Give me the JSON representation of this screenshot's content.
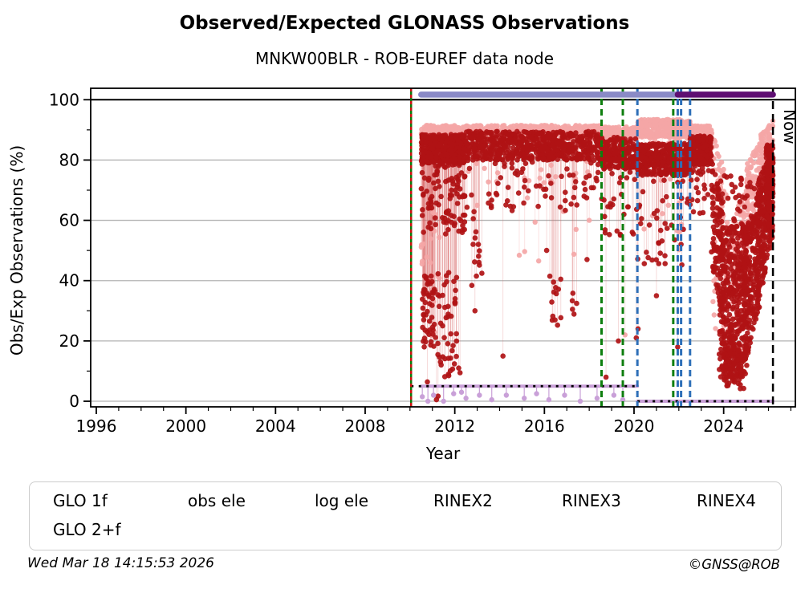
{
  "header": {
    "title": "Observed/Expected GLONASS Observations",
    "subtitle": "MNKW00BLR - ROB-EUREF data node"
  },
  "footer": {
    "timestamp": "Wed Mar 18 14:15:53 2026",
    "credit": "©GNSS@ROB"
  },
  "legend": {
    "items": [
      {
        "id": "glo-1f",
        "label": "GLO 1f",
        "color": "#F4A6A6",
        "marker": "dot"
      },
      {
        "id": "obs-ele",
        "label": "obs ele",
        "color": "#C9A0D8",
        "marker": "line-dot"
      },
      {
        "id": "log-ele",
        "label": "log ele",
        "color": "#000000",
        "marker": "dashed-dot"
      },
      {
        "id": "rinex2",
        "label": "RINEX2",
        "color": "#8A8AC6",
        "marker": "dot"
      },
      {
        "id": "rinex3",
        "label": "RINEX3",
        "color": "#5E0F72",
        "marker": "dot"
      },
      {
        "id": "rinex4",
        "label": "RINEX4",
        "color": "#220533",
        "marker": "dot"
      },
      {
        "id": "glo-2f",
        "label": "GLO 2+f",
        "color": "#B01215",
        "marker": "dot"
      }
    ]
  },
  "chart_data": {
    "type": "scatter",
    "title": "Observed/Expected GLONASS Observations",
    "subtitle": "MNKW00BLR - ROB-EUREF data node",
    "xlabel": "Year",
    "ylabel": "Obs/Exp Observations (%)",
    "xlim": [
      1995.75,
      2027.2
    ],
    "ylim": [
      -1.86,
      103.8
    ],
    "xticks": {
      "major": [
        1996,
        2000,
        2004,
        2008,
        2012,
        2016,
        2020,
        2024
      ],
      "minor_step": 1
    },
    "yticks": {
      "major": [
        0,
        20,
        40,
        60,
        80,
        100
      ],
      "minor_step": 10
    },
    "grid": {
      "color": "#b3b3b3",
      "line100_color": "#000000"
    },
    "now": {
      "x": 2026.2,
      "label": "Now"
    },
    "spans": [
      {
        "name": "RINEX2",
        "x": [
          2010.5,
          2022.05
        ],
        "y": 101.7,
        "color": "#8A8AC6"
      },
      {
        "name": "RINEX3",
        "x": [
          2021.95,
          2026.2
        ],
        "y": 101.7,
        "color": "#5E0F72"
      }
    ],
    "event_lines": [
      {
        "x": 2010.05,
        "color": "#0B7A0B",
        "dash": "none",
        "width": 2.5,
        "overlay": {
          "color": "#CC1111",
          "dash": "4 4",
          "width": 2.5
        }
      },
      {
        "x": 2018.55,
        "color": "#0E7E0E",
        "dash": "8 5",
        "width": 3
      },
      {
        "x": 2019.5,
        "color": "#0E7E0E",
        "dash": "8 5",
        "width": 3
      },
      {
        "x": 2020.15,
        "color": "#2E6FB8",
        "dash": "8 5",
        "width": 3
      },
      {
        "x": 2021.75,
        "color": "#0E7E0E",
        "dash": "8 5",
        "width": 3
      },
      {
        "x": 2021.95,
        "color": "#2E6FB8",
        "dash": "8 5",
        "width": 3
      },
      {
        "x": 2022.1,
        "color": "#2E6FB8",
        "dash": "8 5",
        "width": 3
      },
      {
        "x": 2022.5,
        "color": "#2E6FB8",
        "dash": "8 5",
        "width": 3
      },
      {
        "x": 2026.2,
        "color": "#000000",
        "dash": "10 6",
        "width": 2.5,
        "label": "Now"
      }
    ],
    "series": [
      {
        "name": "GLO 1f",
        "color": "#F4A6A6",
        "r": 3.2,
        "stem_from": 87,
        "stem_color": "rgba(244,166,166,0.35)",
        "bands": [
          {
            "x": [
              2010.5,
              2012.45
            ],
            "y": [
              86.5,
              91.5
            ],
            "n": 230
          },
          {
            "x": [
              2010.5,
              2011.4
            ],
            "y": [
              20,
              65
            ],
            "n": 20,
            "stems": true
          },
          {
            "x": [
              2012.45,
              2018.55
            ],
            "y": [
              87,
              91.5
            ],
            "n": 520
          },
          {
            "x": [
              2012.45,
              2018.55
            ],
            "y": [
              72,
              87
            ],
            "n": 35
          },
          {
            "x": [
              2014.5,
              2018.4
            ],
            "y": [
              45,
              72
            ],
            "n": 8,
            "stems": true
          },
          {
            "x": [
              2018.55,
              2020.15
            ],
            "y": [
              86.5,
              91
            ],
            "n": 160
          },
          {
            "x": [
              2020.15,
              2022.5
            ],
            "y": [
              87.5,
              93.5
            ],
            "n": 320
          },
          {
            "x": [
              2020.15,
              2022.5
            ],
            "y": [
              76,
              87.5
            ],
            "n": 55
          },
          {
            "x": [
              2020.3,
              2022.4
            ],
            "y": [
              50,
              76
            ],
            "n": 11,
            "stems": true
          },
          {
            "x": [
              2022.5,
              2023.45
            ],
            "y": [
              86,
              91.5
            ],
            "n": 160
          },
          {
            "x": [
              2023.45,
              2024.2
            ],
            "y": [
              70,
              90
            ],
            "y1": [
              45,
              75
            ],
            "n": 55
          },
          {
            "x": [
              2023.5,
              2025.3
            ],
            "y": [
              15,
              60
            ],
            "n": 80
          },
          {
            "x": [
              2024.4,
              2025.1
            ],
            "y": [
              35,
              62
            ],
            "y1": [
              48,
              75
            ],
            "n": 60
          },
          {
            "x": [
              2025.0,
              2025.7
            ],
            "y": [
              55,
              78
            ],
            "y1": [
              68,
              88
            ],
            "n": 85
          },
          {
            "x": [
              2025.6,
              2026.2
            ],
            "y": [
              68,
              88
            ],
            "y1": [
              78,
              93
            ],
            "n": 120
          },
          {
            "x": [
              2025.85,
              2026.2
            ],
            "y": [
              58,
              80
            ],
            "n": 45
          }
        ],
        "points": [
          [
            2013.0,
            65
          ],
          [
            2015.8,
            74
          ],
          [
            2015.85,
            71
          ],
          [
            2018.0,
            60
          ],
          [
            2019.6,
            22
          ],
          [
            2011.0,
            37
          ],
          [
            2011.05,
            33
          ]
        ]
      },
      {
        "name": "GLO 2+f",
        "color": "#B01215",
        "r": 3.3,
        "stem_from": 82,
        "stem_color": "rgba(214,96,96,0.25)",
        "bands": [
          {
            "x": [
              2010.5,
              2012.45
            ],
            "y": [
              79,
              88.5
            ],
            "n": 380
          },
          {
            "x": [
              2010.5,
              2012.45
            ],
            "y": [
              55,
              79
            ],
            "n": 100,
            "stems": true
          },
          {
            "x": [
              2010.55,
              2011.15
            ],
            "y": [
              18,
              42
            ],
            "n": 50,
            "stems": true
          },
          {
            "x": [
              2011.2,
              2012.1
            ],
            "y": [
              8,
              45
            ],
            "n": 45,
            "stems": true
          },
          {
            "x": [
              2010.6,
              2012.3
            ],
            "y": [
              0,
              12
            ],
            "n": 7,
            "stems": true
          },
          {
            "x": [
              2012.45,
              2018.55
            ],
            "y": [
              80,
              89.5
            ],
            "n": 620
          },
          {
            "x": [
              2012.45,
              2018.55
            ],
            "y": [
              62,
              80
            ],
            "n": 75,
            "stems": true
          },
          {
            "x": [
              2012.6,
              2013.4
            ],
            "y": [
              35,
              62
            ],
            "n": 12,
            "stems": true
          },
          {
            "x": [
              2016.2,
              2016.8
            ],
            "y": [
              25,
              45
            ],
            "n": 13,
            "stems": true
          },
          {
            "x": [
              2017.1,
              2017.45
            ],
            "y": [
              28,
              38
            ],
            "n": 5,
            "stems": true
          },
          {
            "x": [
              2018.55,
              2020.15
            ],
            "y": [
              77,
              87.5
            ],
            "n": 210
          },
          {
            "x": [
              2018.55,
              2020.15
            ],
            "y": [
              55,
              77
            ],
            "n": 26,
            "stems": true
          },
          {
            "x": [
              2020.15,
              2022.5
            ],
            "y": [
              75,
              85.5
            ],
            "n": 370
          },
          {
            "x": [
              2020.15,
              2022.5
            ],
            "y": [
              45,
              75
            ],
            "n": 42,
            "stems": true
          },
          {
            "x": [
              2022.5,
              2023.45
            ],
            "y": [
              78.5,
              88
            ],
            "n": 220
          },
          {
            "x": [
              2022.5,
              2023.45
            ],
            "y": [
              62,
              78.5
            ],
            "n": 22,
            "stems": true
          },
          {
            "x": [
              2023.45,
              2024.0
            ],
            "y": [
              45,
              80
            ],
            "y1": [
              25,
              65
            ],
            "n": 100
          },
          {
            "x": [
              2023.8,
              2025.1
            ],
            "y": [
              8,
              58
            ],
            "n": 430
          },
          {
            "x": [
              2024.0,
              2024.9
            ],
            "y": [
              4,
              18
            ],
            "n": 70
          },
          {
            "x": [
              2023.45,
              2025.4
            ],
            "y": [
              55,
              75
            ],
            "n": 55
          },
          {
            "x": [
              2024.9,
              2025.6
            ],
            "y": [
              12,
              55
            ],
            "y1": [
              30,
              70
            ],
            "n": 180
          },
          {
            "x": [
              2025.5,
              2026.2
            ],
            "y": [
              30,
              72
            ],
            "y1": [
              55,
              85
            ],
            "n": 260
          },
          {
            "x": [
              2025.9,
              2026.2
            ],
            "y": [
              58,
              85
            ],
            "n": 110
          }
        ],
        "points": [
          [
            2013.05,
            52
          ],
          [
            2014.15,
            15
          ],
          [
            2016.1,
            50
          ],
          [
            2017.9,
            47
          ],
          [
            2018.75,
            8
          ],
          [
            2019.3,
            20
          ],
          [
            2019.55,
            62
          ],
          [
            2020.1,
            21
          ],
          [
            2020.18,
            24
          ],
          [
            2021.0,
            35
          ],
          [
            2021.95,
            18
          ],
          [
            2022.1,
            52
          ],
          [
            2012.9,
            30
          ]
        ]
      }
    ],
    "obs_ele": {
      "color": "#C9A0D8",
      "width": 4,
      "segments": [
        [
          [
            2010.5,
            5
          ],
          [
            2020.15,
            5
          ]
        ],
        [
          [
            2020.15,
            0
          ],
          [
            2026.2,
            0
          ]
        ]
      ],
      "dips": [
        [
          2010.55,
          1.5
        ],
        [
          2010.8,
          0
        ],
        [
          2011.05,
          2
        ],
        [
          2011.5,
          0
        ],
        [
          2011.95,
          2.5
        ],
        [
          2012.3,
          3
        ],
        [
          2012.5,
          1
        ],
        [
          2013.1,
          2
        ],
        [
          2013.65,
          0.5
        ],
        [
          2014.3,
          2
        ],
        [
          2015.1,
          1
        ],
        [
          2015.65,
          2.5
        ],
        [
          2016.2,
          0.5
        ],
        [
          2016.9,
          2
        ],
        [
          2017.6,
          0
        ],
        [
          2018.35,
          1
        ],
        [
          2019.1,
          2
        ],
        [
          2019.5,
          0.5
        ]
      ]
    },
    "log_ele": {
      "color": "#000000",
      "width": 2.8,
      "dash": "3 6.5",
      "segments": [
        [
          [
            2010.05,
            5
          ],
          [
            2020.15,
            5
          ]
        ],
        [
          [
            2020.15,
            0
          ],
          [
            2026.2,
            0
          ]
        ]
      ]
    }
  }
}
